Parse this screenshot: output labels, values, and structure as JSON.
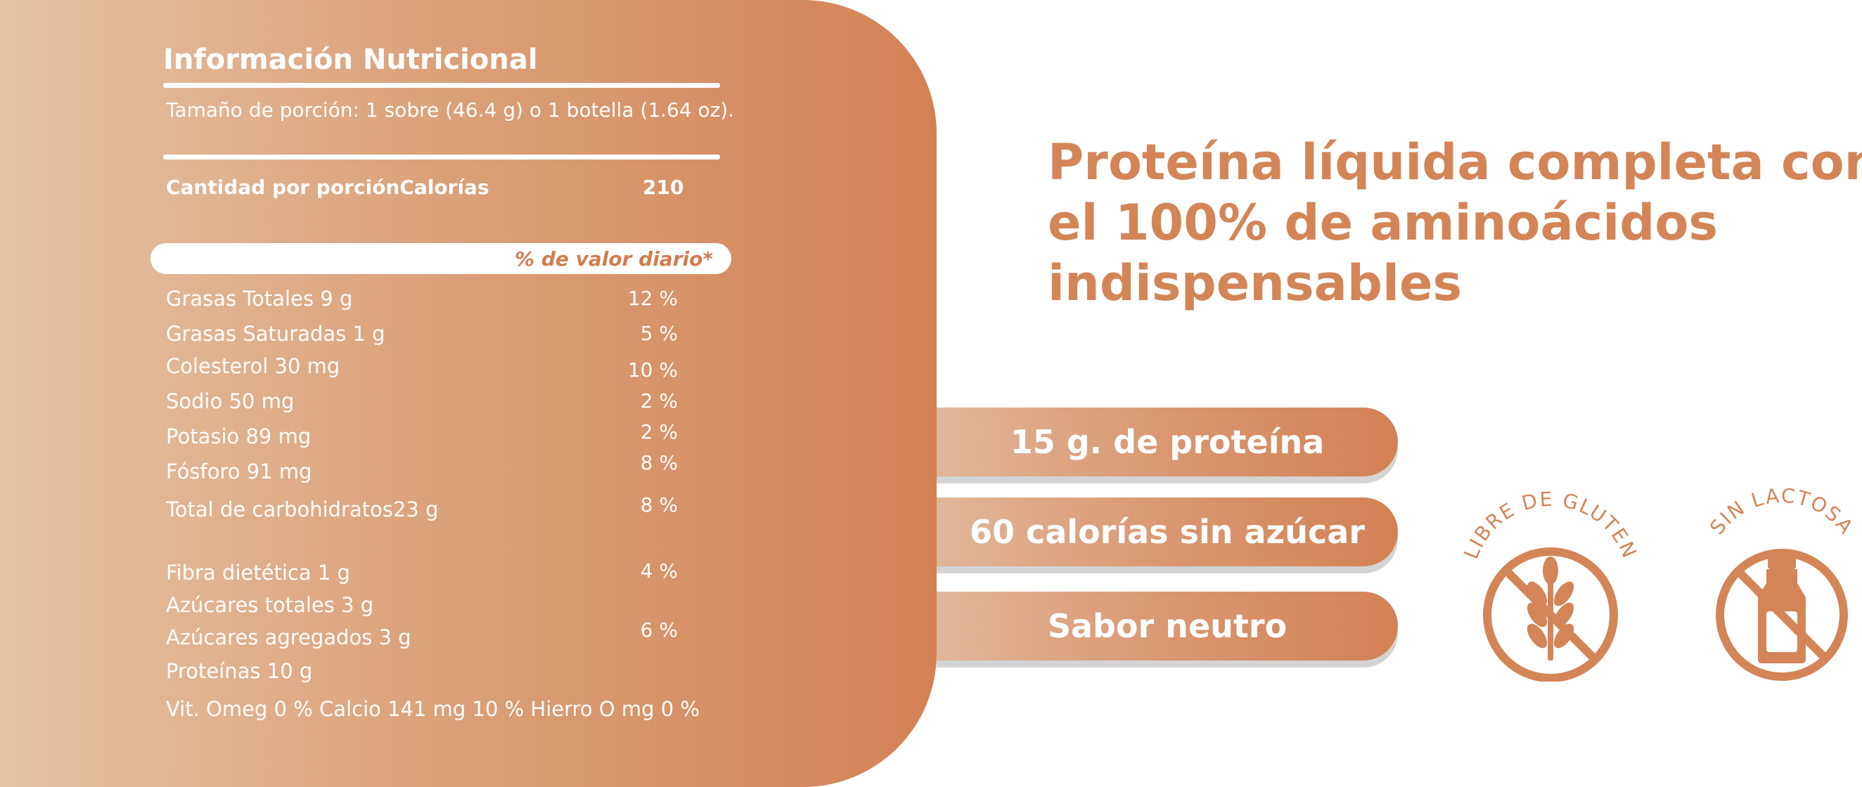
{
  "nutrition": {
    "title": "Información Nutricional",
    "serving": "Tamaño de porción: 1 sobre (46.4 g) o 1 botella (1.64 oz).",
    "amount_label": "Cantidad por porciónCalorías",
    "amount_value": "210",
    "dv_label": "% de valor diario*",
    "rows": [
      {
        "name": "Grasas Totales 9 g",
        "pct": "12 %"
      },
      {
        "name": "Grasas Saturadas 1 g",
        "pct": "5 %"
      },
      {
        "name": "Colesterol 30 mg",
        "pct": "10 %"
      },
      {
        "name": "Sodio 50 mg",
        "pct": "2 %"
      },
      {
        "name": "Potasio 89 mg",
        "pct": "2 %"
      },
      {
        "name": "Fósforo 91 mg",
        "pct": "8 %"
      },
      {
        "name": "Total de carbohidratos23 g",
        "pct": "8 %"
      },
      {
        "name": "Fibra dietética 1 g",
        "pct": "4 %"
      },
      {
        "name": "Azúcares totales 3 g",
        "pct": ""
      },
      {
        "name": "Azúcares agregados 3 g",
        "pct": "6 %"
      },
      {
        "name": "Proteínas 10 g",
        "pct": ""
      }
    ],
    "footer": "Vit.  Omeg  0 %  Calcio 141 mg 10 % Hierro O mg 0 %"
  },
  "headline": {
    "line1": "Proteína líquida completa con",
    "line2": "el 100% de aminoácidos",
    "line3": "indispensables"
  },
  "features": [
    {
      "label": "15 g. de proteína"
    },
    {
      "label": "60 calorías sin azúcar"
    },
    {
      "label": "Sabor neutro"
    }
  ],
  "badges": {
    "gluten": {
      "text": "LIBRE DE GLUTEN",
      "icon": "wheat-icon"
    },
    "lactose": {
      "text": "SIN LACTOSA",
      "icon": "milk-bottle-icon"
    }
  },
  "colors": {
    "accent": "#d38557",
    "gradient_start": "#e5c3a4",
    "gradient_end": "#d38154"
  }
}
